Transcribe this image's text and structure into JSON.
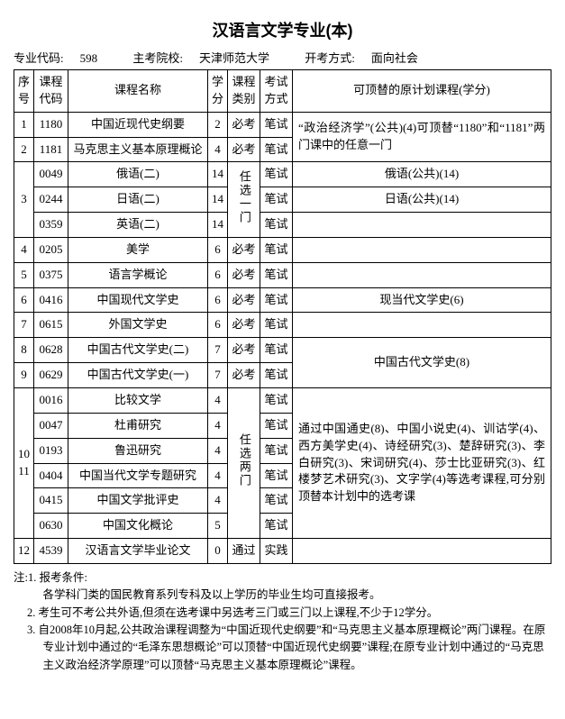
{
  "title": "汉语言文学专业(本)",
  "meta": {
    "code_label": "专业代码:",
    "code_value": "598",
    "school_label": "主考院校:",
    "school_value": "天津师范大学",
    "mode_label": "开考方式:",
    "mode_value": "面向社会"
  },
  "columns": {
    "seq": "序号",
    "code": "课程代码",
    "name": "课程名称",
    "credit": "学分",
    "category": "课程类别",
    "method": "考试方式",
    "substitute": "可顶替的原计划课程(学分)"
  },
  "rows": [
    {
      "seq": "1",
      "code": "1180",
      "name": "中国近现代史纲要",
      "credit": "2",
      "cat": "必考",
      "method": "笔试"
    },
    {
      "seq": "2",
      "code": "1181",
      "name": "马克思主义基本原理概论",
      "credit": "4",
      "cat": "必考",
      "method": "笔试"
    },
    {
      "code": "0049",
      "name": "俄语(二)",
      "credit": "14",
      "method": "笔试",
      "sub": "俄语(公共)(14)"
    },
    {
      "code": "0244",
      "name": "日语(二)",
      "credit": "14",
      "method": "笔试",
      "sub": "日语(公共)(14)"
    },
    {
      "code": "0359",
      "name": "英语(二)",
      "credit": "14",
      "method": "笔试"
    },
    {
      "seq": "4",
      "code": "0205",
      "name": "美学",
      "credit": "6",
      "cat": "必考",
      "method": "笔试"
    },
    {
      "seq": "5",
      "code": "0375",
      "name": "语言学概论",
      "credit": "6",
      "cat": "必考",
      "method": "笔试"
    },
    {
      "seq": "6",
      "code": "0416",
      "name": "中国现代文学史",
      "credit": "6",
      "cat": "必考",
      "method": "笔试",
      "sub": "现当代文学史(6)"
    },
    {
      "seq": "7",
      "code": "0615",
      "name": "外国文学史",
      "credit": "6",
      "cat": "必考",
      "method": "笔试"
    },
    {
      "seq": "8",
      "code": "0628",
      "name": "中国古代文学史(二)",
      "credit": "7",
      "cat": "必考",
      "method": "笔试"
    },
    {
      "seq": "9",
      "code": "0629",
      "name": "中国古代文学史(一)",
      "credit": "7",
      "cat": "必考",
      "method": "笔试"
    },
    {
      "code": "0016",
      "name": "比较文学",
      "credit": "4",
      "method": "笔试"
    },
    {
      "code": "0047",
      "name": "杜甫研究",
      "credit": "4",
      "method": "笔试"
    },
    {
      "code": "0193",
      "name": "鲁迅研究",
      "credit": "4",
      "method": "笔试"
    },
    {
      "code": "0404",
      "name": "中国当代文学专题研究",
      "credit": "4",
      "method": "笔试"
    },
    {
      "code": "0415",
      "name": "中国文学批评史",
      "credit": "4",
      "method": "笔试"
    },
    {
      "code": "0630",
      "name": "中国文化概论",
      "credit": "5",
      "method": "笔试"
    },
    {
      "seq": "12",
      "code": "4539",
      "name": "汉语言文学毕业论文",
      "credit": "0",
      "cat": "通过",
      "method": "实践"
    }
  ],
  "group3_seq": "3",
  "group3_cat": "任选一门",
  "group10_seq": "10\n11",
  "group10_cat": "任选两门",
  "sub_1_2": "“政治经济学”(公共)(4)可顶替“1180”和“1181”两门课中的任意一门",
  "sub_8_9": "中国古代文学史(8)",
  "sub_10": "通过中国通史(8)、中国小说史(4)、训诂学(4)、西方美学史(4)、诗经研究(3)、楚辞研究(3)、李白研究(3)、宋词研究(4)、莎士比亚研究(3)、红楼梦艺术研究(3)、文字学(4)等选考课程,可分别顶替本计划中的选考课",
  "notes": {
    "head": "注:1. 报考条件:",
    "n1b": "各学科门类的国民教育系列专科及以上学历的毕业生均可直接报考。",
    "n2": "2. 考生可不考公共外语,但须在选考课中另选考三门或三门以上课程,不少于12学分。",
    "n3": "3. 自2008年10月起,公共政治课程调整为“中国近现代史纲要”和“马克思主义基本原理概论”两门课程。在原专业计划中通过的“毛泽东思想概论”可以顶替“中国近现代史纲要”课程;在原专业计划中通过的“马克思主义政治经济学原理”可以顶替“马克思主义基本原理概论”课程。"
  }
}
